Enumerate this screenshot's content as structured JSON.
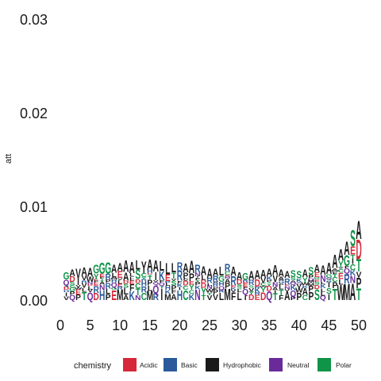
{
  "chart_data": {
    "type": "sequence-logo",
    "title": "",
    "xlabel": "",
    "ylabel": "att",
    "xlim": [
      0,
      50
    ],
    "ylim": [
      0,
      0.03
    ],
    "x_ticks": [
      "0",
      "5",
      "10",
      "15",
      "20",
      "25",
      "30",
      "35",
      "40",
      "45",
      "50"
    ],
    "y_ticks": [
      "0.00",
      "0.01",
      "0.02",
      "0.03"
    ],
    "grid": false,
    "legend": {
      "title": "chemistry",
      "position": "bottom",
      "entries": [
        {
          "name": "Acidic",
          "color": "#d62839"
        },
        {
          "name": "Basic",
          "color": "#2a5a9b"
        },
        {
          "name": "Hydrophobic",
          "color": "#1a1a1a"
        },
        {
          "name": "Neutral",
          "color": "#6a2b9a"
        },
        {
          "name": "Polar",
          "color": "#0f9448"
        }
      ]
    },
    "positions": [
      1,
      2,
      3,
      4,
      5,
      6,
      7,
      8,
      9,
      10,
      11,
      12,
      13,
      14,
      15,
      16,
      17,
      18,
      19,
      20,
      21,
      22,
      23,
      24,
      25,
      26,
      27,
      28,
      29,
      30,
      31,
      32,
      33,
      34,
      35,
      36,
      37,
      38,
      39,
      40,
      41,
      42,
      43,
      44,
      45,
      46,
      47,
      48,
      49,
      50
    ],
    "column_heights": [
      0.003,
      0.0033,
      0.0034,
      0.0035,
      0.0035,
      0.0038,
      0.004,
      0.0041,
      0.0038,
      0.004,
      0.0043,
      0.0041,
      0.0043,
      0.0042,
      0.0044,
      0.0043,
      0.0042,
      0.004,
      0.004,
      0.0041,
      0.0039,
      0.0042,
      0.0038,
      0.0036,
      0.0034,
      0.0034,
      0.0036,
      0.0039,
      0.0036,
      0.003,
      0.0029,
      0.0031,
      0.0032,
      0.0033,
      0.0034,
      0.0038,
      0.0033,
      0.0031,
      0.0032,
      0.0031,
      0.0033,
      0.0036,
      0.0038,
      0.0037,
      0.004,
      0.0049,
      0.0055,
      0.0063,
      0.0075,
      0.0085
    ],
    "top_letters": [
      "G",
      "A",
      "V",
      "A",
      "A",
      "G",
      "G",
      "G",
      "A",
      "A",
      "A",
      "A",
      "L",
      "Y",
      "A",
      "A",
      "L",
      "L",
      "L",
      "R",
      "A",
      "A",
      "R",
      "A",
      "A",
      "A",
      "L",
      "R",
      "A",
      "A",
      "G",
      "A",
      "A",
      "A",
      "A",
      "A",
      "A",
      "A",
      "S",
      "S",
      "A",
      "S",
      "A",
      "A",
      "A",
      "A",
      "A",
      "A",
      "S",
      "A"
    ],
    "top_classes": [
      "Polar",
      "Hydrophobic",
      "Hydrophobic",
      "Hydrophobic",
      "Hydrophobic",
      "Polar",
      "Polar",
      "Polar",
      "Hydrophobic",
      "Hydrophobic",
      "Hydrophobic",
      "Hydrophobic",
      "Hydrophobic",
      "Hydrophobic",
      "Hydrophobic",
      "Hydrophobic",
      "Hydrophobic",
      "Hydrophobic",
      "Hydrophobic",
      "Basic",
      "Hydrophobic",
      "Hydrophobic",
      "Basic",
      "Hydrophobic",
      "Hydrophobic",
      "Hydrophobic",
      "Hydrophobic",
      "Basic",
      "Hydrophobic",
      "Hydrophobic",
      "Polar",
      "Hydrophobic",
      "Hydrophobic",
      "Hydrophobic",
      "Hydrophobic",
      "Hydrophobic",
      "Hydrophobic",
      "Hydrophobic",
      "Polar",
      "Polar",
      "Hydrophobic",
      "Polar",
      "Hydrophobic",
      "Hydrophobic",
      "Hydrophobic",
      "Hydrophobic",
      "Hydrophobic",
      "Hydrophobic",
      "Polar",
      "Hydrophobic"
    ]
  }
}
